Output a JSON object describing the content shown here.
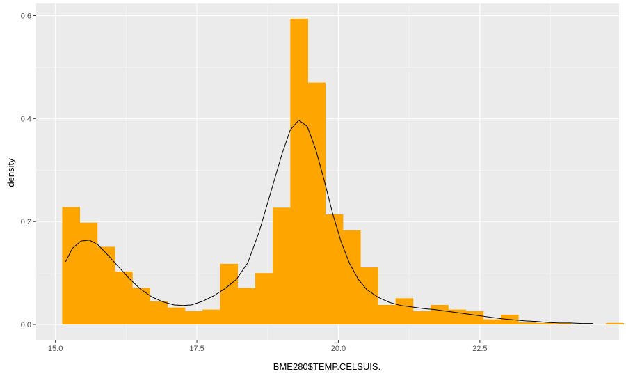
{
  "chart_data": {
    "type": "bar",
    "xlabel": "BME280$TEMP.CELSUIS.",
    "ylabel": "density",
    "xlim": [
      14.66,
      24.96
    ],
    "ylim": [
      -0.0297,
      0.6237
    ],
    "x_ticks": [
      {
        "value": 15.0,
        "label": "15.0"
      },
      {
        "value": 17.5,
        "label": "17.5"
      },
      {
        "value": 20.0,
        "label": "20.0"
      },
      {
        "value": 22.5,
        "label": "22.5"
      }
    ],
    "y_ticks": [
      {
        "value": 0.0,
        "label": "0.0"
      },
      {
        "value": 0.2,
        "label": "0.2"
      },
      {
        "value": 0.4,
        "label": "0.4"
      },
      {
        "value": 0.6,
        "label": "0.6"
      }
    ],
    "grid": true,
    "histogram": {
      "x_start": 15.12,
      "bin_width": 0.31,
      "color": "#FFA500",
      "densities": [
        0.228,
        0.198,
        0.151,
        0.103,
        0.071,
        0.045,
        0.033,
        0.026,
        0.029,
        0.118,
        0.071,
        0.1,
        0.227,
        0.594,
        0.47,
        0.214,
        0.183,
        0.111,
        0.038,
        0.051,
        0.026,
        0.038,
        0.029,
        0.026,
        0.01,
        0.019,
        0.004,
        0.003,
        0.002,
        0.0,
        0.0,
        0.003
      ]
    },
    "density_curve": {
      "color": "#000000",
      "x": [
        15.18,
        15.3,
        15.45,
        15.6,
        15.75,
        15.9,
        16.1,
        16.3,
        16.5,
        16.7,
        16.9,
        17.1,
        17.25,
        17.4,
        17.6,
        17.8,
        18.0,
        18.2,
        18.4,
        18.6,
        18.8,
        19.0,
        19.15,
        19.3,
        19.45,
        19.6,
        19.75,
        19.9,
        20.05,
        20.2,
        20.35,
        20.5,
        20.7,
        20.9,
        21.1,
        21.3,
        21.5,
        21.7,
        21.9,
        22.1,
        22.3,
        22.5,
        22.7,
        22.9,
        23.1,
        23.3,
        23.5,
        23.7,
        23.9,
        24.1,
        24.3,
        24.5
      ],
      "y": [
        0.122,
        0.148,
        0.162,
        0.164,
        0.155,
        0.138,
        0.114,
        0.09,
        0.069,
        0.054,
        0.044,
        0.038,
        0.037,
        0.038,
        0.045,
        0.056,
        0.07,
        0.088,
        0.12,
        0.18,
        0.255,
        0.33,
        0.378,
        0.397,
        0.385,
        0.34,
        0.28,
        0.215,
        0.16,
        0.118,
        0.088,
        0.068,
        0.053,
        0.043,
        0.037,
        0.034,
        0.031,
        0.029,
        0.026,
        0.023,
        0.02,
        0.017,
        0.014,
        0.011,
        0.009,
        0.007,
        0.006,
        0.004,
        0.003,
        0.003,
        0.002,
        0.002
      ]
    }
  }
}
